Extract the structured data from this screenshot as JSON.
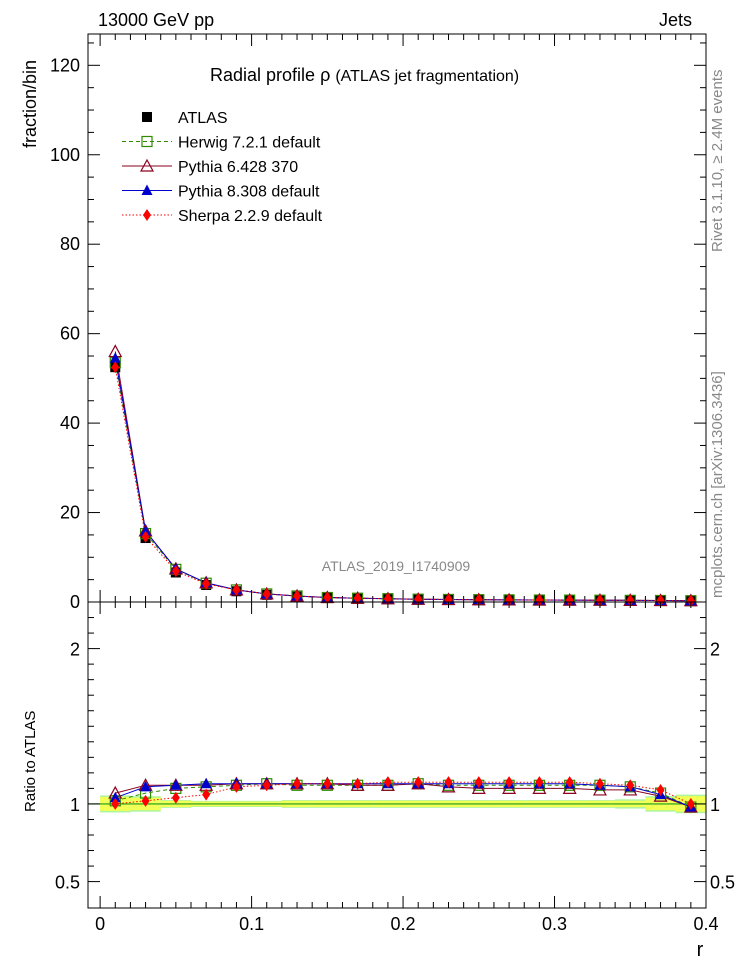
{
  "header": {
    "left": "13000 GeV pp",
    "right": "Jets"
  },
  "side_text": {
    "rivet": "Rivet 3.1.10, ≥ 2.4M events",
    "mcplots": "mcplots.cern.ch [arXiv:1306.3436]"
  },
  "watermark": "ATLAS_2019_I1740909",
  "chart_data": [
    {
      "type": "line",
      "title_main": "Radial profile",
      "title_symbol": "ρ",
      "title_sub": "(ATLAS jet fragmentation)",
      "ylabel": "fraction/bin",
      "xlim": [
        -0.008,
        0.4
      ],
      "ylim": [
        0,
        127
      ],
      "yticks": [
        0,
        20,
        40,
        60,
        80,
        100,
        120
      ],
      "x": [
        0.01,
        0.03,
        0.05,
        0.07,
        0.09,
        0.11,
        0.13,
        0.15,
        0.17,
        0.19,
        0.21,
        0.23,
        0.25,
        0.27,
        0.29,
        0.31,
        0.33,
        0.35,
        0.37,
        0.39
      ],
      "legend_position": "top-left",
      "series": [
        {
          "name": "ATLAS",
          "color": "#000000",
          "marker": "square-filled",
          "line": "none",
          "values": [
            52.5,
            14.3,
            6.6,
            3.8,
            2.4,
            1.6,
            1.2,
            0.9,
            0.75,
            0.65,
            0.55,
            0.5,
            0.45,
            0.42,
            0.39,
            0.37,
            0.35,
            0.33,
            0.31,
            0.29
          ]
        },
        {
          "name": "Herwig 7.2.1 default",
          "color": "#2e8b00",
          "marker": "square-open",
          "line": "dashed",
          "values": [
            53.5,
            15.3,
            7.3,
            4.2,
            2.7,
            1.8,
            1.35,
            1.0,
            0.85,
            0.74,
            0.63,
            0.57,
            0.52,
            0.48,
            0.44,
            0.42,
            0.4,
            0.37,
            0.34,
            0.29
          ]
        },
        {
          "name": "Pythia 6.428 370",
          "color": "#8b0020",
          "marker": "triangle-open",
          "line": "solid",
          "values": [
            56.0,
            15.9,
            7.4,
            4.3,
            2.7,
            1.8,
            1.33,
            1.0,
            0.84,
            0.73,
            0.62,
            0.56,
            0.51,
            0.47,
            0.44,
            0.42,
            0.4,
            0.37,
            0.34,
            0.29
          ]
        },
        {
          "name": "Pythia 8.308 default",
          "color": "#0000cc",
          "marker": "triangle-filled",
          "line": "solid",
          "values": [
            54.5,
            15.8,
            7.4,
            4.3,
            2.7,
            1.8,
            1.35,
            1.0,
            0.85,
            0.74,
            0.63,
            0.57,
            0.52,
            0.48,
            0.44,
            0.42,
            0.4,
            0.37,
            0.34,
            0.29
          ]
        },
        {
          "name": "Sherpa 2.2.9 default",
          "color": "#ff0000",
          "marker": "diamond-filled",
          "line": "dotted",
          "values": [
            52.5,
            14.6,
            6.9,
            4.05,
            2.7,
            1.8,
            1.35,
            1.0,
            0.85,
            0.74,
            0.63,
            0.57,
            0.52,
            0.48,
            0.44,
            0.42,
            0.4,
            0.37,
            0.34,
            0.29
          ]
        }
      ]
    },
    {
      "type": "line",
      "ylabel": "Ratio to ATLAS",
      "xlabel": "r",
      "xlim": [
        -0.008,
        0.4
      ],
      "ylim": [
        0.33,
        2.3
      ],
      "yticks": [
        0.5,
        1,
        2
      ],
      "xticks": [
        0,
        0.1,
        0.2,
        0.3,
        0.4
      ],
      "x": [
        0.01,
        0.03,
        0.05,
        0.07,
        0.09,
        0.11,
        0.13,
        0.15,
        0.17,
        0.19,
        0.21,
        0.23,
        0.25,
        0.27,
        0.29,
        0.31,
        0.33,
        0.35,
        0.37,
        0.39
      ],
      "band": {
        "color_inner": "#f2ff55",
        "color_outer": "#aef5a0",
        "inner_halfwidth": [
          0.045,
          0.04,
          0.02,
          0.015,
          0.015,
          0.015,
          0.02,
          0.02,
          0.02,
          0.02,
          0.02,
          0.02,
          0.02,
          0.02,
          0.02,
          0.02,
          0.02,
          0.02,
          0.04,
          0.05
        ],
        "outer_halfwidth": [
          0.055,
          0.05,
          0.025,
          0.02,
          0.02,
          0.02,
          0.025,
          0.025,
          0.025,
          0.025,
          0.025,
          0.025,
          0.025,
          0.025,
          0.025,
          0.025,
          0.025,
          0.03,
          0.05,
          0.06
        ]
      },
      "series": [
        {
          "name": "Herwig 7.2.1 default",
          "color": "#2e8b00",
          "marker": "square-open",
          "line": "dashed",
          "values": [
            1.02,
            1.07,
            1.1,
            1.11,
            1.12,
            1.13,
            1.12,
            1.12,
            1.12,
            1.12,
            1.13,
            1.12,
            1.12,
            1.12,
            1.12,
            1.12,
            1.12,
            1.11,
            1.07,
            0.98
          ]
        },
        {
          "name": "Pythia 6.428 370",
          "color": "#8b0020",
          "marker": "triangle-open",
          "line": "solid",
          "values": [
            1.07,
            1.12,
            1.12,
            1.12,
            1.13,
            1.13,
            1.13,
            1.13,
            1.12,
            1.12,
            1.13,
            1.11,
            1.1,
            1.1,
            1.1,
            1.1,
            1.09,
            1.09,
            1.05,
            0.98
          ]
        },
        {
          "name": "Pythia 8.308 default",
          "color": "#0000cc",
          "marker": "triangle-filled",
          "line": "solid",
          "values": [
            1.04,
            1.11,
            1.12,
            1.13,
            1.13,
            1.13,
            1.13,
            1.13,
            1.13,
            1.13,
            1.13,
            1.13,
            1.13,
            1.13,
            1.13,
            1.13,
            1.12,
            1.11,
            1.06,
            0.98
          ]
        },
        {
          "name": "Sherpa 2.2.9 default",
          "color": "#ff0000",
          "marker": "diamond-filled",
          "line": "dotted",
          "values": [
            1.0,
            1.02,
            1.04,
            1.06,
            1.11,
            1.12,
            1.13,
            1.13,
            1.13,
            1.14,
            1.14,
            1.14,
            1.14,
            1.14,
            1.14,
            1.14,
            1.13,
            1.12,
            1.09,
            1.0
          ]
        }
      ]
    }
  ]
}
